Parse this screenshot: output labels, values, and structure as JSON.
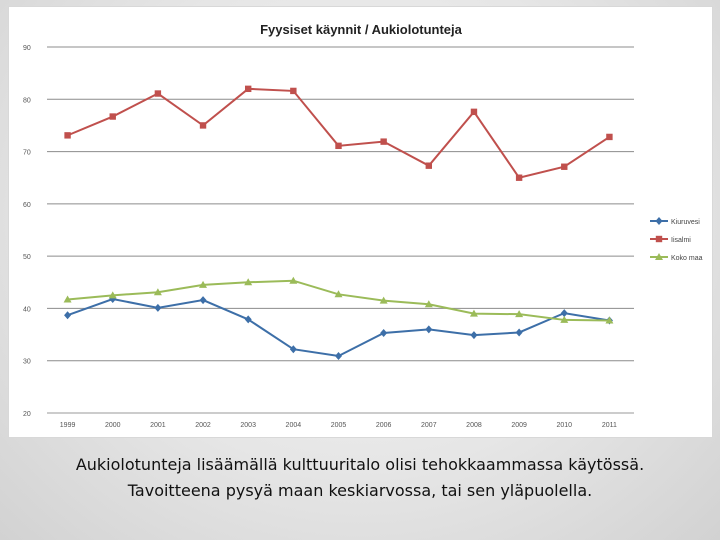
{
  "chart_data": {
    "type": "line",
    "title": "Fyysiset käynnit / Aukiolotunteja",
    "xlabel": "",
    "ylabel": "",
    "categories": [
      "1999",
      "2000",
      "2001",
      "2002",
      "2003",
      "2004",
      "2005",
      "2006",
      "2007",
      "2008",
      "2009",
      "2010",
      "2011"
    ],
    "ylim": [
      20,
      90
    ],
    "yticks": [
      "20",
      "30",
      "40",
      "50",
      "60",
      "70",
      "80",
      "90"
    ],
    "grid": true,
    "legend_position": "right",
    "series": [
      {
        "name": "Kiuruvesi",
        "color": "#3d6fa8",
        "marker": "diamond",
        "values": [
          38.7,
          41.8,
          40.1,
          41.6,
          37.9,
          32.2,
          30.9,
          35.3,
          36.0,
          34.9,
          35.4,
          39.1,
          37.7
        ]
      },
      {
        "name": "Iisalmi",
        "color": "#c0504d",
        "marker": "square",
        "values": [
          73.1,
          76.7,
          81.1,
          75.0,
          82.0,
          81.6,
          71.1,
          71.9,
          67.3,
          77.6,
          65.0,
          67.1,
          72.8
        ]
      },
      {
        "name": "Koko maa",
        "color": "#9bbb59",
        "marker": "triangle",
        "values": [
          41.7,
          42.5,
          43.1,
          44.5,
          45.0,
          45.3,
          42.7,
          41.5,
          40.8,
          39.0,
          38.9,
          37.8,
          37.7
        ]
      }
    ]
  },
  "caption": {
    "line1": "Aukiolotunteja lisäämällä kulttuuritalo olisi tehokkaammassa käytössä.",
    "line2": "Tavoitteena pysyä maan keskiarvossa, tai sen yläpuolella."
  }
}
